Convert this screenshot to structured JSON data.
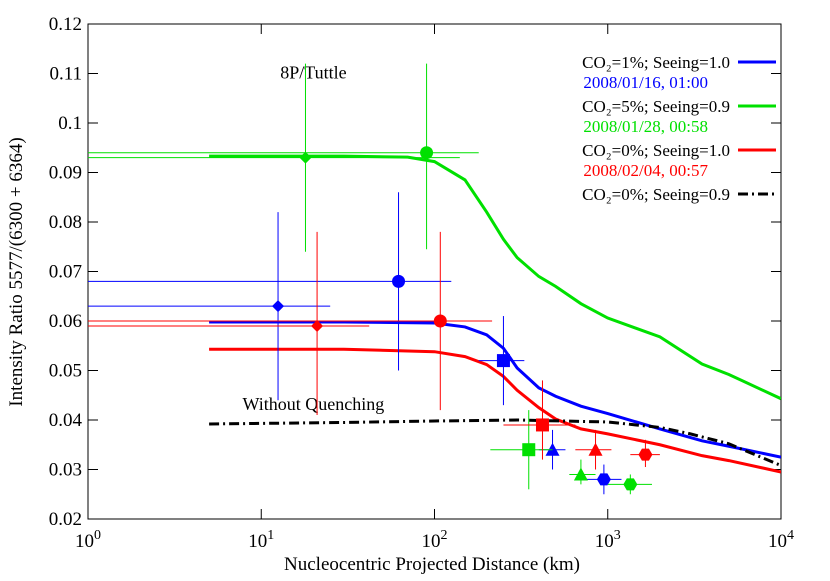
{
  "chart_data": {
    "type": "line",
    "x_label": "Nucleocentric Projected Distance (km)",
    "y_label": "Intensity Ratio 5577/(6300 + 6364)",
    "xlim": [
      1,
      10000
    ],
    "ylim": [
      0.02,
      0.12
    ],
    "x_scale": "log",
    "xticks": [
      {
        "value": 1,
        "label": "10^0"
      },
      {
        "value": 10,
        "label": "10^1"
      },
      {
        "value": 100,
        "label": "10^2"
      },
      {
        "value": 1000,
        "label": "10^3"
      },
      {
        "value": 10000,
        "label": "10^4"
      }
    ],
    "yticks": [
      0.02,
      0.03,
      0.04,
      0.05,
      0.06,
      0.07,
      0.08,
      0.09,
      0.1,
      0.11,
      0.12
    ],
    "legend": "top-right",
    "annotations": [
      {
        "text": "8P/Tuttle",
        "x": 20,
        "y": 0.109
      },
      {
        "text": "Without Quenching",
        "x": 20,
        "y": 0.042
      }
    ],
    "series": [
      {
        "name": "CO₂=1%; Seeing=1.0",
        "color": "#0000ff",
        "dash": "solid",
        "x": [
          5,
          30,
          100,
          150,
          200,
          250,
          300,
          400,
          500,
          700,
          1000,
          2000,
          3500,
          5000,
          10000
        ],
        "values": [
          0.0598,
          0.0598,
          0.0596,
          0.0588,
          0.0572,
          0.0545,
          0.0505,
          0.0465,
          0.0448,
          0.0428,
          0.0413,
          0.0382,
          0.0358,
          0.0347,
          0.0325
        ]
      },
      {
        "name": "CO₂=5%; Seeing=0.9",
        "color": "#00e000",
        "dash": "solid",
        "x": [
          5,
          30,
          70,
          100,
          150,
          200,
          250,
          300,
          400,
          500,
          700,
          1000,
          2000,
          3500,
          5000,
          10000
        ],
        "values": [
          0.0933,
          0.0933,
          0.0931,
          0.0922,
          0.0885,
          0.082,
          0.0765,
          0.0728,
          0.069,
          0.067,
          0.0635,
          0.0606,
          0.0568,
          0.0513,
          0.0492,
          0.0443
        ]
      },
      {
        "name": "CO₂=0%; Seeing=1.0",
        "color": "#ff0000",
        "dash": "solid",
        "x": [
          5,
          30,
          100,
          150,
          200,
          250,
          300,
          400,
          500,
          700,
          1000,
          2000,
          3500,
          5000,
          10000
        ],
        "values": [
          0.0543,
          0.0543,
          0.0538,
          0.0528,
          0.0512,
          0.0488,
          0.046,
          0.0425,
          0.0402,
          0.0382,
          0.0372,
          0.035,
          0.0328,
          0.0318,
          0.0295
        ]
      },
      {
        "name": "CO₂=0%; Seeing=0.9",
        "color": "#000000",
        "dash": "dashdot",
        "x": [
          5,
          30,
          100,
          300,
          1000,
          2000,
          3000,
          5000,
          10000
        ],
        "values": [
          0.0392,
          0.0395,
          0.0398,
          0.04,
          0.0396,
          0.0385,
          0.0372,
          0.0352,
          0.0308
        ]
      }
    ],
    "observations": [
      {
        "name": "2008/01/16,  01:00",
        "color": "#0000ff",
        "markers": [
          "diamond",
          "circle",
          "square",
          "triangle",
          "hexagon"
        ],
        "x": [
          12.5,
          62,
          250,
          480,
          950
        ],
        "values": [
          0.063,
          0.068,
          0.052,
          0.034,
          0.028
        ],
        "x_low": [
          1,
          1,
          180,
          400,
          720
        ],
        "x_high": [
          25,
          125,
          330,
          570,
          1200
        ],
        "y_low": [
          0.044,
          0.05,
          0.043,
          0.03,
          0.025
        ],
        "y_high": [
          0.082,
          0.086,
          0.061,
          0.038,
          0.031
        ]
      },
      {
        "name": "2008/01/28,  00:58",
        "color": "#00e000",
        "markers": [
          "diamond",
          "circle",
          "square",
          "triangle",
          "hexagon"
        ],
        "x": [
          18,
          90,
          350,
          700,
          1350
        ],
        "values": [
          0.093,
          0.094,
          0.034,
          0.029,
          0.027
        ],
        "x_low": [
          1,
          1,
          210,
          600,
          1000
        ],
        "x_high": [
          140,
          180,
          480,
          850,
          1800
        ],
        "y_low": [
          0.074,
          0.0745,
          0.026,
          0.027,
          0.025
        ],
        "y_high": [
          0.112,
          0.112,
          0.042,
          0.032,
          0.029
        ]
      },
      {
        "name": "2008/02/04,  00:57",
        "color": "#ff0000",
        "markers": [
          "diamond",
          "circle",
          "square",
          "triangle",
          "hexagon"
        ],
        "x": [
          21,
          108,
          420,
          850,
          1650
        ],
        "values": [
          0.059,
          0.06,
          0.039,
          0.034,
          0.033
        ],
        "x_low": [
          1,
          1,
          250,
          650,
          1350
        ],
        "x_high": [
          42,
          215,
          650,
          1050,
          2000
        ],
        "y_low": [
          0.041,
          0.042,
          0.032,
          0.03,
          0.0305
        ],
        "y_high": [
          0.078,
          0.078,
          0.048,
          0.038,
          0.036
        ]
      }
    ]
  }
}
